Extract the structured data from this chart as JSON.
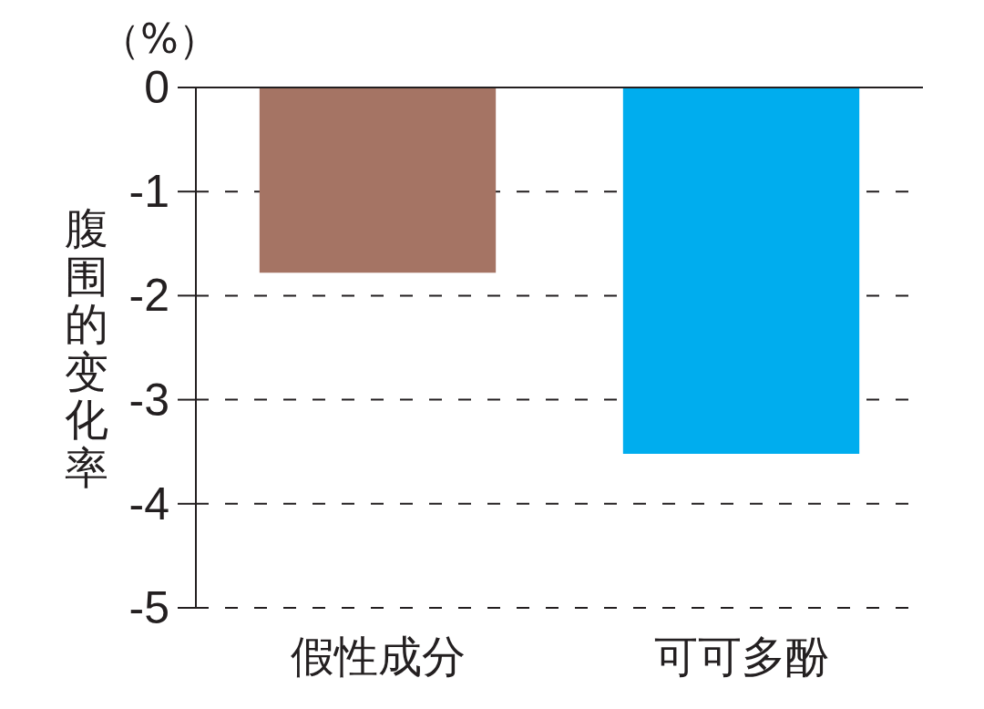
{
  "chart_data": {
    "type": "bar",
    "ylabel": "腹围的变化率",
    "annotations": [
      "（%）"
    ],
    "categories": [
      "假性成分",
      "可可多酚"
    ],
    "values": [
      -1.78,
      -3.52
    ],
    "colors": [
      "#a57464",
      "#00adee"
    ],
    "ylim": [
      -5,
      0
    ],
    "yticks": [
      0,
      -1,
      -2,
      -3,
      -4,
      -5
    ],
    "grid": "y"
  }
}
